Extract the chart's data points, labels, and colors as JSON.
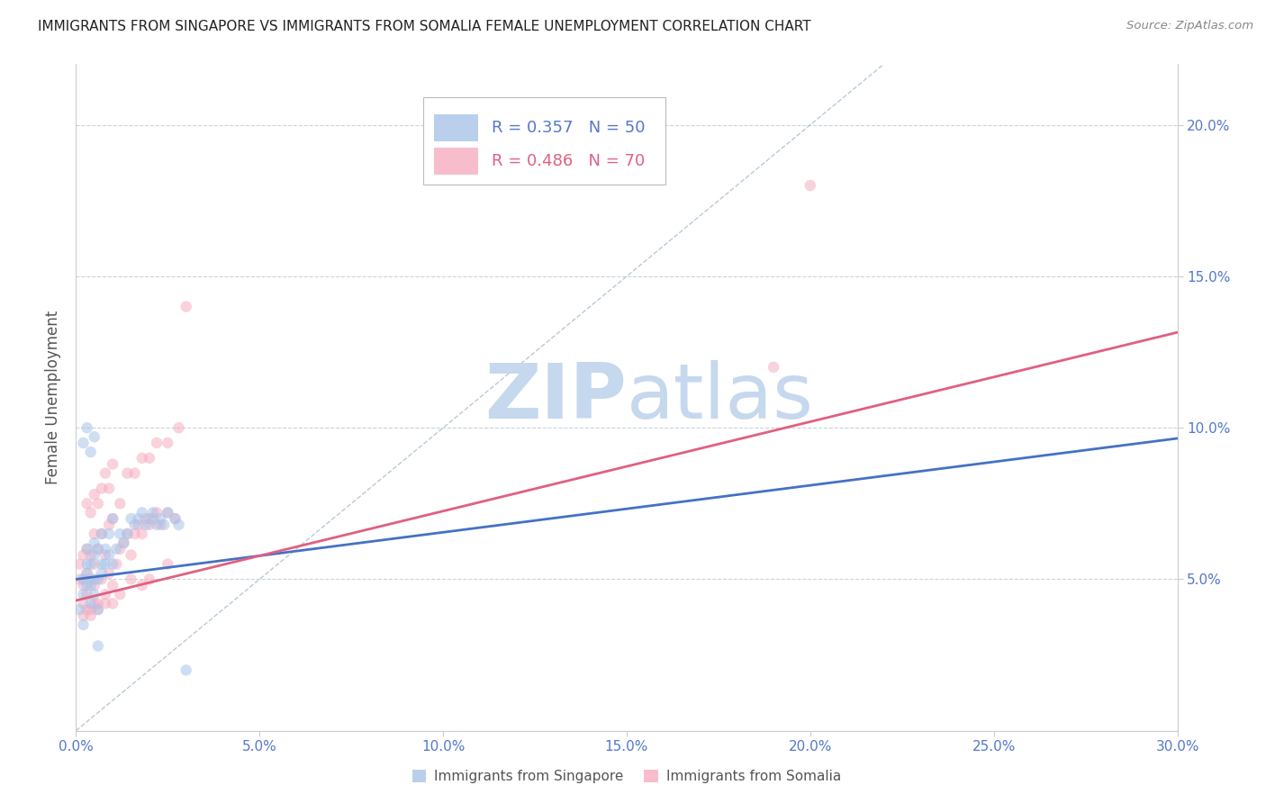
{
  "title": "IMMIGRANTS FROM SINGAPORE VS IMMIGRANTS FROM SOMALIA FEMALE UNEMPLOYMENT CORRELATION CHART",
  "source": "Source: ZipAtlas.com",
  "ylabel": "Female Unemployment",
  "x_tick_labels": [
    "0.0%",
    "5.0%",
    "10.0%",
    "15.0%",
    "20.0%",
    "25.0%",
    "30.0%"
  ],
  "x_tick_values": [
    0.0,
    0.05,
    0.1,
    0.15,
    0.2,
    0.25,
    0.3
  ],
  "y_tick_labels": [
    "5.0%",
    "10.0%",
    "15.0%",
    "20.0%"
  ],
  "y_tick_values": [
    0.05,
    0.1,
    0.15,
    0.2
  ],
  "xlim": [
    0.0,
    0.3
  ],
  "ylim": [
    0.0,
    0.22
  ],
  "singapore_color": "#a8c4e8",
  "somalia_color": "#f5adc0",
  "singapore_line_color": "#4472c4",
  "somalia_line_color": "#e06080",
  "diagonal_line_color": "#aabccc",
  "legend_R_singapore": "R = 0.357",
  "legend_N_singapore": "N = 50",
  "legend_R_somalia": "R = 0.486",
  "legend_N_somalia": "N = 70",
  "watermark_zip": "ZIP",
  "watermark_atlas": "atlas",
  "watermark_zip_color": "#c5d8ee",
  "watermark_atlas_color": "#c5d8ee",
  "singapore_scatter_x": [
    0.001,
    0.002,
    0.002,
    0.002,
    0.003,
    0.003,
    0.003,
    0.003,
    0.004,
    0.004,
    0.004,
    0.005,
    0.005,
    0.005,
    0.005,
    0.006,
    0.006,
    0.006,
    0.007,
    0.007,
    0.007,
    0.008,
    0.008,
    0.009,
    0.009,
    0.01,
    0.01,
    0.011,
    0.012,
    0.013,
    0.014,
    0.015,
    0.016,
    0.017,
    0.018,
    0.019,
    0.02,
    0.021,
    0.022,
    0.023,
    0.024,
    0.025,
    0.027,
    0.028,
    0.03,
    0.002,
    0.003,
    0.004,
    0.005,
    0.006
  ],
  "singapore_scatter_y": [
    0.04,
    0.035,
    0.045,
    0.05,
    0.048,
    0.052,
    0.055,
    0.06,
    0.042,
    0.048,
    0.055,
    0.045,
    0.05,
    0.058,
    0.062,
    0.04,
    0.05,
    0.06,
    0.052,
    0.055,
    0.065,
    0.055,
    0.06,
    0.058,
    0.065,
    0.055,
    0.07,
    0.06,
    0.065,
    0.062,
    0.065,
    0.07,
    0.068,
    0.07,
    0.072,
    0.068,
    0.07,
    0.072,
    0.068,
    0.07,
    0.068,
    0.072,
    0.07,
    0.068,
    0.02,
    0.095,
    0.1,
    0.092,
    0.097,
    0.028
  ],
  "somalia_scatter_x": [
    0.001,
    0.001,
    0.002,
    0.002,
    0.002,
    0.003,
    0.003,
    0.003,
    0.004,
    0.004,
    0.004,
    0.005,
    0.005,
    0.005,
    0.006,
    0.006,
    0.007,
    0.007,
    0.008,
    0.008,
    0.009,
    0.009,
    0.01,
    0.01,
    0.011,
    0.012,
    0.013,
    0.014,
    0.015,
    0.016,
    0.017,
    0.018,
    0.019,
    0.02,
    0.021,
    0.022,
    0.023,
    0.025,
    0.027,
    0.003,
    0.004,
    0.005,
    0.006,
    0.007,
    0.008,
    0.009,
    0.01,
    0.012,
    0.014,
    0.016,
    0.018,
    0.02,
    0.022,
    0.025,
    0.028,
    0.03,
    0.002,
    0.003,
    0.004,
    0.005,
    0.006,
    0.008,
    0.01,
    0.012,
    0.015,
    0.018,
    0.02,
    0.025,
    0.2,
    0.19
  ],
  "somalia_scatter_y": [
    0.05,
    0.055,
    0.042,
    0.048,
    0.058,
    0.045,
    0.052,
    0.06,
    0.04,
    0.05,
    0.058,
    0.048,
    0.055,
    0.065,
    0.042,
    0.06,
    0.05,
    0.065,
    0.045,
    0.058,
    0.052,
    0.068,
    0.048,
    0.07,
    0.055,
    0.06,
    0.062,
    0.065,
    0.058,
    0.065,
    0.068,
    0.065,
    0.07,
    0.068,
    0.07,
    0.072,
    0.068,
    0.072,
    0.07,
    0.075,
    0.072,
    0.078,
    0.075,
    0.08,
    0.085,
    0.08,
    0.088,
    0.075,
    0.085,
    0.085,
    0.09,
    0.09,
    0.095,
    0.095,
    0.1,
    0.14,
    0.038,
    0.04,
    0.038,
    0.042,
    0.04,
    0.042,
    0.042,
    0.045,
    0.05,
    0.048,
    0.05,
    0.055,
    0.18,
    0.12
  ],
  "singapore_line_x": [
    0.0,
    0.3
  ],
  "singapore_line_y_intercept": 0.05,
  "singapore_line_slope": 0.155,
  "somalia_line_x": [
    0.0,
    0.3
  ],
  "somalia_line_y_intercept": 0.043,
  "somalia_line_slope": 0.295,
  "diagonal_line_x": [
    0.0,
    0.22
  ],
  "diagonal_line_y": [
    0.0,
    0.22
  ],
  "background_color": "#ffffff",
  "grid_color": "#c8d4dc",
  "title_color": "#222222",
  "axis_label_color": "#555555",
  "tick_label_color": "#5577cc",
  "marker_size": 9,
  "marker_alpha": 0.55,
  "line_width": 2.0
}
